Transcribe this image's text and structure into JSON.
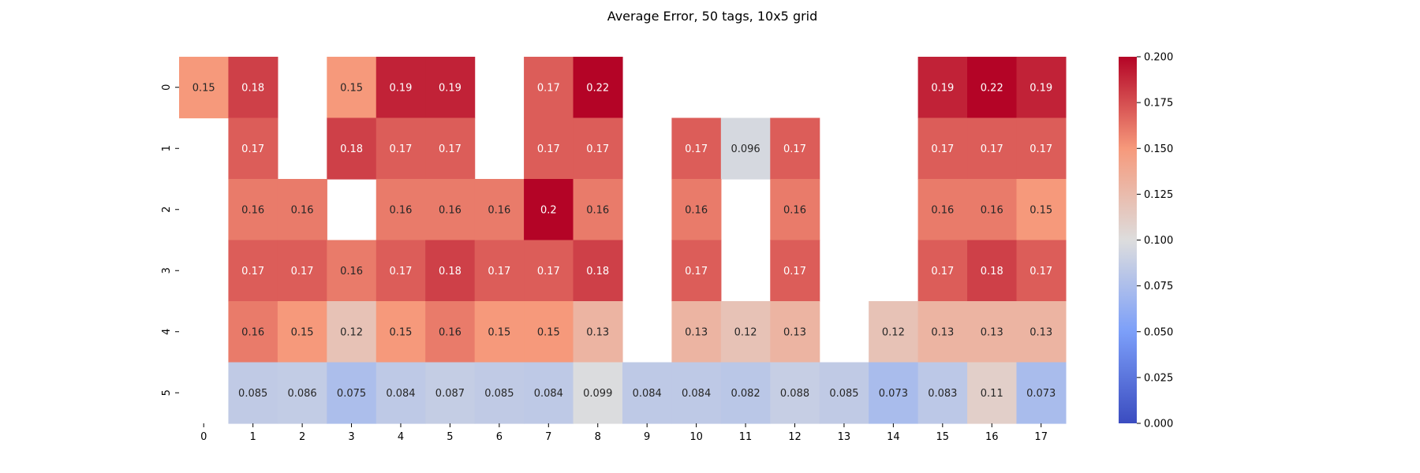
{
  "chart_data": {
    "type": "heatmap",
    "title": "Average Error, 50 tags, 10x5 grid",
    "x_ticks": [
      "0",
      "1",
      "2",
      "3",
      "4",
      "5",
      "6",
      "7",
      "8",
      "9",
      "10",
      "11",
      "12",
      "13",
      "14",
      "15",
      "16",
      "17"
    ],
    "y_ticks": [
      "0",
      "1",
      "2",
      "3",
      "4",
      "5"
    ],
    "values": [
      [
        0.15,
        0.18,
        null,
        0.15,
        0.19,
        0.19,
        null,
        0.17,
        0.22,
        null,
        null,
        null,
        null,
        null,
        null,
        0.19,
        0.22,
        0.19
      ],
      [
        null,
        0.17,
        null,
        0.18,
        0.17,
        0.17,
        null,
        0.17,
        0.17,
        null,
        0.17,
        0.096,
        0.17,
        null,
        null,
        0.17,
        0.17,
        0.17
      ],
      [
        null,
        0.16,
        0.16,
        null,
        0.16,
        0.16,
        0.16,
        0.2,
        0.16,
        null,
        0.16,
        null,
        0.16,
        null,
        null,
        0.16,
        0.16,
        0.15
      ],
      [
        null,
        0.17,
        0.17,
        0.16,
        0.17,
        0.18,
        0.17,
        0.17,
        0.18,
        null,
        0.17,
        null,
        0.17,
        null,
        null,
        0.17,
        0.18,
        0.17
      ],
      [
        null,
        0.16,
        0.15,
        0.12,
        0.15,
        0.16,
        0.15,
        0.15,
        0.13,
        null,
        0.13,
        0.12,
        0.13,
        null,
        0.12,
        0.13,
        0.13,
        0.13
      ],
      [
        null,
        0.085,
        0.086,
        0.075,
        0.084,
        0.087,
        0.085,
        0.084,
        0.099,
        0.084,
        0.084,
        0.082,
        0.088,
        0.085,
        0.073,
        0.083,
        0.11,
        0.073
      ]
    ],
    "colorbar": {
      "min": 0.0,
      "max": 0.2,
      "ticks": [
        "0.000",
        "0.025",
        "0.050",
        "0.075",
        "0.100",
        "0.125",
        "0.150",
        "0.175",
        "0.200"
      ],
      "colormap": "coolwarm"
    }
  }
}
